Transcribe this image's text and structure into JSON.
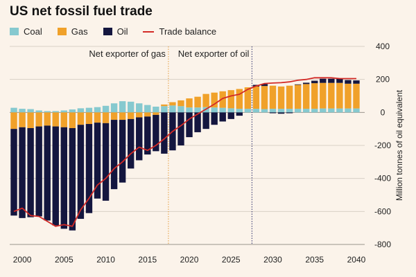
{
  "chart_data": {
    "type": "bar",
    "title": "US net fossil fuel trade",
    "ylabel": "Million tonnes of oil equivalent",
    "ylim": [
      -800,
      400
    ],
    "yticks": [
      -800,
      -600,
      -400,
      -200,
      0,
      200,
      400
    ],
    "xticks": [
      2000,
      2005,
      2010,
      2015,
      2020,
      2025,
      2030,
      2035,
      2040
    ],
    "years": [
      1999,
      2000,
      2001,
      2002,
      2003,
      2004,
      2005,
      2006,
      2007,
      2008,
      2009,
      2010,
      2011,
      2012,
      2013,
      2014,
      2015,
      2016,
      2017,
      2018,
      2019,
      2020,
      2021,
      2022,
      2023,
      2024,
      2025,
      2026,
      2027,
      2028,
      2029,
      2030,
      2031,
      2032,
      2033,
      2034,
      2035,
      2036,
      2037,
      2038,
      2039,
      2040
    ],
    "series": [
      {
        "name": "Coal",
        "color": "#86c9cf",
        "values": [
          28,
          22,
          20,
          12,
          8,
          8,
          12,
          18,
          25,
          28,
          32,
          40,
          55,
          68,
          65,
          55,
          45,
          35,
          38,
          42,
          38,
          30,
          30,
          32,
          30,
          28,
          25,
          22,
          22,
          22,
          20,
          22,
          22,
          22,
          22,
          22,
          22,
          24,
          24,
          24,
          24,
          24
        ]
      },
      {
        "name": "Gas",
        "color": "#f0a12a",
        "values": [
          -100,
          -90,
          -95,
          -85,
          -80,
          -85,
          -90,
          -95,
          -75,
          -70,
          -62,
          -65,
          -45,
          -45,
          -40,
          -30,
          -25,
          -15,
          10,
          20,
          35,
          55,
          65,
          80,
          90,
          100,
          110,
          120,
          130,
          135,
          140,
          140,
          135,
          140,
          145,
          150,
          155,
          155,
          155,
          155,
          150,
          150
        ]
      },
      {
        "name": "Oil",
        "color": "#14163f",
        "values": [
          -525,
          -550,
          -540,
          -545,
          -575,
          -600,
          -615,
          -620,
          -570,
          -540,
          -460,
          -470,
          -420,
          -380,
          -300,
          -260,
          -230,
          -220,
          -250,
          -230,
          -200,
          -150,
          -120,
          -100,
          -75,
          -55,
          -40,
          -20,
          0,
          10,
          12,
          -5,
          -8,
          -5,
          3,
          8,
          15,
          25,
          25,
          25,
          22,
          20
        ]
      },
      {
        "name": "Trade balance",
        "color": "#d32a26",
        "values": [
          -600,
          -580,
          -625,
          -630,
          -660,
          -690,
          -680,
          -690,
          -590,
          -520,
          -440,
          -400,
          -340,
          -300,
          -250,
          -210,
          -230,
          -200,
          -160,
          -115,
          -80,
          -40,
          -10,
          20,
          50,
          85,
          100,
          110,
          140,
          160,
          175,
          178,
          180,
          185,
          195,
          200,
          210,
          210,
          210,
          205,
          205,
          205
        ]
      }
    ],
    "annotations": [
      {
        "text": "Net exporter of gas",
        "year": 2017.5
      },
      {
        "text": "Net exporter of oil",
        "year": 2027.5
      }
    ]
  }
}
